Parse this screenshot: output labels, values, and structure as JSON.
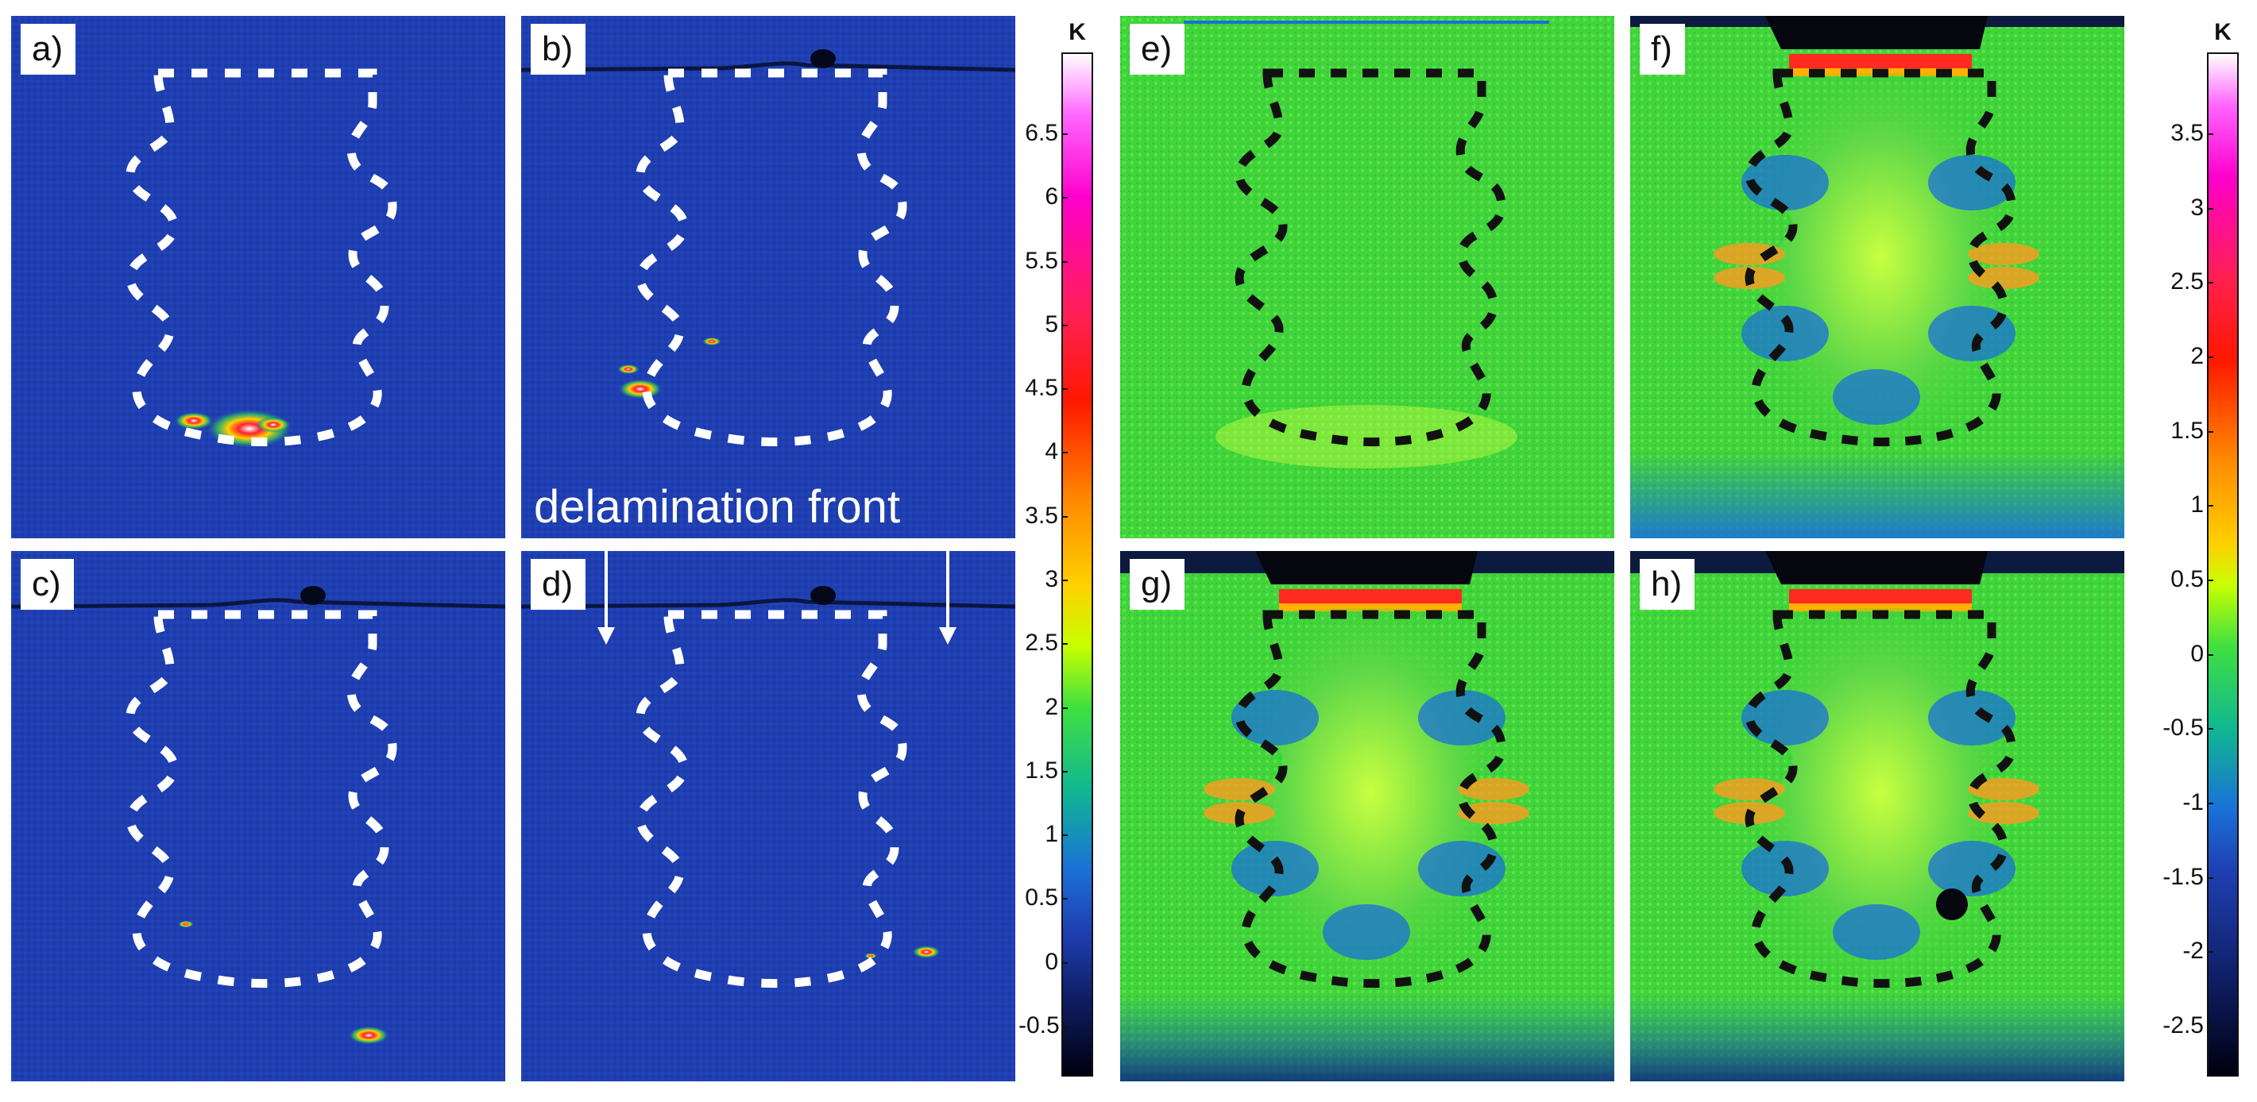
{
  "figure": {
    "panels": [
      {
        "label": "a)",
        "scheme": "blue"
      },
      {
        "label": "b)",
        "scheme": "blue"
      },
      {
        "label": "c)",
        "scheme": "blue"
      },
      {
        "label": "d)",
        "scheme": "blue"
      },
      {
        "label": "e)",
        "scheme": "green"
      },
      {
        "label": "f)",
        "scheme": "green"
      },
      {
        "label": "g)",
        "scheme": "green"
      },
      {
        "label": "h)",
        "scheme": "green"
      }
    ],
    "annotation": "delamination front",
    "colorbars": [
      {
        "unit": "K",
        "ticks": [
          "6.5",
          "6",
          "5.5",
          "5",
          "4.5",
          "4",
          "3.5",
          "3",
          "2.5",
          "2",
          "1.5",
          "1",
          "0.5",
          "0",
          "-0.5"
        ]
      },
      {
        "unit": "K",
        "ticks": [
          "3.5",
          "3",
          "2.5",
          "2",
          "1.5",
          "1",
          "0.5",
          "0",
          "-0.5",
          "-1",
          "-1.5",
          "-2",
          "-2.5"
        ]
      }
    ],
    "colors": {
      "blue_background": "#1f3fb2",
      "green_background": "#3fd43a",
      "white_outline": "#ffffff",
      "black_outline": "#111111"
    }
  }
}
